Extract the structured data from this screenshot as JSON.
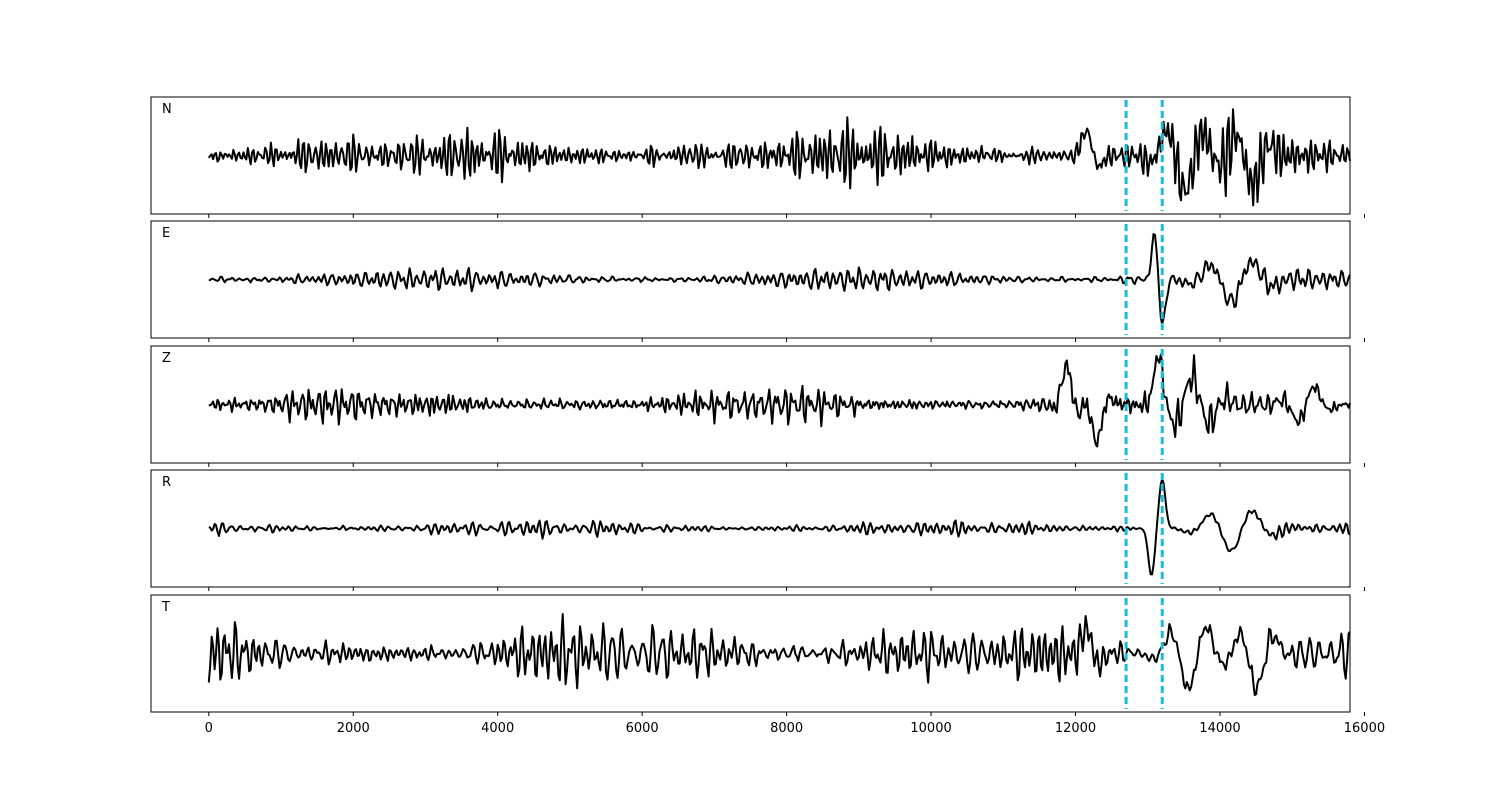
{
  "chart_data": {
    "type": "line",
    "title": "",
    "xlabel": "",
    "ylabel": "",
    "xlim": [
      -800,
      15800
    ],
    "xticks": [
      0,
      2000,
      4000,
      6000,
      8000,
      10000,
      12000,
      14000,
      16000
    ],
    "xtick_labels": [
      "0",
      "2000",
      "4000",
      "6000",
      "8000",
      "10000",
      "12000",
      "14000",
      "16000"
    ],
    "grid": false,
    "legend": null,
    "samples": 15800,
    "vertical_markers": [
      {
        "x": 12700,
        "color": "#17becf",
        "style": "dashed"
      },
      {
        "x": 13200,
        "color": "#17becf",
        "style": "dashed"
      }
    ],
    "series": [
      {
        "name": "N",
        "noise_amp": 0.5,
        "period": 95,
        "seed": 11,
        "events": [
          {
            "x": 12200,
            "width": 150,
            "amp": 0.6
          },
          {
            "x": 13500,
            "width": 400,
            "amp": 0.7
          },
          {
            "x": 14400,
            "width": 300,
            "amp": 0.6
          }
        ]
      },
      {
        "name": "E",
        "noise_amp": 0.18,
        "period": 110,
        "seed": 23,
        "events": [
          {
            "x": 13100,
            "width": 60,
            "amp": 0.95
          },
          {
            "x": 13200,
            "width": 60,
            "amp": -1.0
          },
          {
            "x": 14200,
            "width": 500,
            "amp": 0.45
          }
        ]
      },
      {
        "name": "Z",
        "noise_amp": 0.35,
        "period": 90,
        "seed": 37,
        "events": [
          {
            "x": 11900,
            "width": 150,
            "amp": 0.8
          },
          {
            "x": 12300,
            "width": 150,
            "amp": 0.75
          },
          {
            "x": 13150,
            "width": 80,
            "amp": 0.9
          },
          {
            "x": 13600,
            "width": 400,
            "amp": 0.55
          },
          {
            "x": 15200,
            "width": 300,
            "amp": 0.4
          }
        ]
      },
      {
        "name": "R",
        "noise_amp": 0.18,
        "period": 110,
        "seed": 53,
        "events": [
          {
            "x": 13050,
            "width": 60,
            "amp": -0.95
          },
          {
            "x": 13200,
            "width": 60,
            "amp": 1.0
          },
          {
            "x": 14200,
            "width": 500,
            "amp": 0.45
          }
        ]
      },
      {
        "name": "T",
        "noise_amp": 0.55,
        "period": 95,
        "seed": 71,
        "events": [
          {
            "x": 12200,
            "width": 150,
            "amp": 0.6
          },
          {
            "x": 13600,
            "width": 400,
            "amp": 0.7
          },
          {
            "x": 14500,
            "width": 300,
            "amp": 0.7
          }
        ]
      }
    ]
  }
}
